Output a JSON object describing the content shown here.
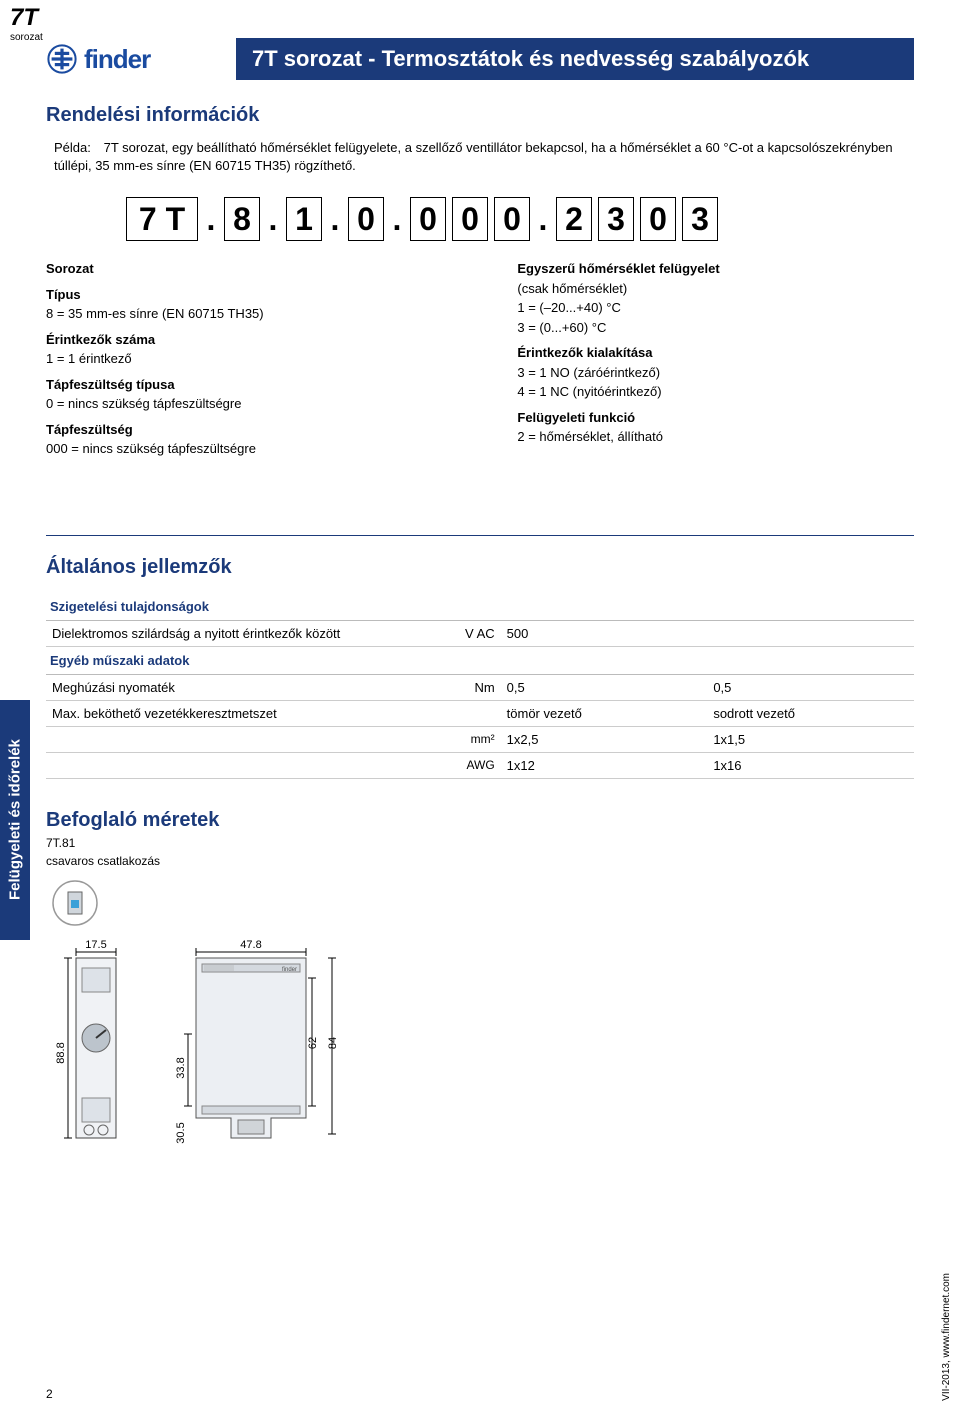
{
  "corner": {
    "big": "7T",
    "small": "sorozat"
  },
  "brand": {
    "name": "finder"
  },
  "titlebar": "7T sorozat - Termosztátok és nedvesség szabályozók",
  "order": {
    "head": "Rendelési információk",
    "example_label": "Példa:",
    "example_text": "7T sorozat, egy beállítható hőmérséklet felügyelete, a szellőző ventillátor bekapcsol, ha a hőmérséklet a 60 °C-ot a kapcsolószekrényben túllépi, 35 mm-es sínre (EN 60715 TH35) rögzíthető."
  },
  "code": {
    "boxes": [
      "7 T",
      "8",
      "1",
      "0",
      "0",
      "0",
      "0",
      "2",
      "3",
      "0",
      "3"
    ],
    "dots_after": [
      0,
      1,
      2,
      3,
      6
    ]
  },
  "decode_left": [
    {
      "head": "Sorozat",
      "lines": []
    },
    {
      "head": "Típus",
      "lines": [
        "8 = 35 mm-es sínre (EN 60715 TH35)"
      ]
    },
    {
      "head": "Érintkezők száma",
      "lines": [
        "1 = 1 érintkező"
      ]
    },
    {
      "head": "Tápfeszültség típusa",
      "lines": [
        "0 = nincs szükség tápfeszültségre"
      ]
    },
    {
      "head": "Tápfeszültség",
      "lines": [
        "000 = nincs szükség tápfeszültségre"
      ]
    }
  ],
  "decode_right": [
    {
      "head": "Egyszerű hőmérséklet felügyelet",
      "lines": [
        "(csak hőmérséklet)",
        "1 = (–20...+40) °C",
        "3 = (0...+60) °C"
      ]
    },
    {
      "head": "Érintkezők kialakítása",
      "lines": [
        "3 = 1 NO (záróérintkező)",
        "4 = 1 NC (nyitóérintkező)"
      ]
    },
    {
      "head": "Felügyeleti funkció",
      "lines": [
        "2 = hőmérséklet, állítható"
      ]
    }
  ],
  "general": {
    "head": "Általános jellemzők",
    "sub1": "Szigetelési tulajdonságok",
    "row1": {
      "label": "Dielektromos szilárdság a nyitott érintkezők között",
      "unit": "V AC",
      "v1": "500",
      "v2": ""
    },
    "sub2": "Egyéb műszaki adatok",
    "row2": {
      "label": "Meghúzási nyomaték",
      "unit": "Nm",
      "v1": "0,5",
      "v2": "0,5"
    },
    "row3": {
      "label": "Max. beköthető vezetékkeresztmetszet",
      "unit": "",
      "v1": "tömör vezető",
      "v2": "sodrott vezető"
    },
    "row4": {
      "label": "",
      "unit": "mm²",
      "v1": "1x2,5",
      "v2": "1x1,5"
    },
    "row5": {
      "label": "",
      "unit": "AWG",
      "v1": "1x12",
      "v2": "1x16"
    }
  },
  "dim": {
    "head": "Befoglaló méretek",
    "sub1": "7T.81",
    "sub2": "csavaros csatlakozás",
    "w1": "17.5",
    "w2": "47.8",
    "h1": "88.8",
    "h2": "33.8",
    "h3": "30.5",
    "h4": "62",
    "h5": "84"
  },
  "sidetab": "Felügyeleti és időrelék",
  "footer": {
    "page": "2",
    "side": "VII-2013, www.findernet.com"
  }
}
